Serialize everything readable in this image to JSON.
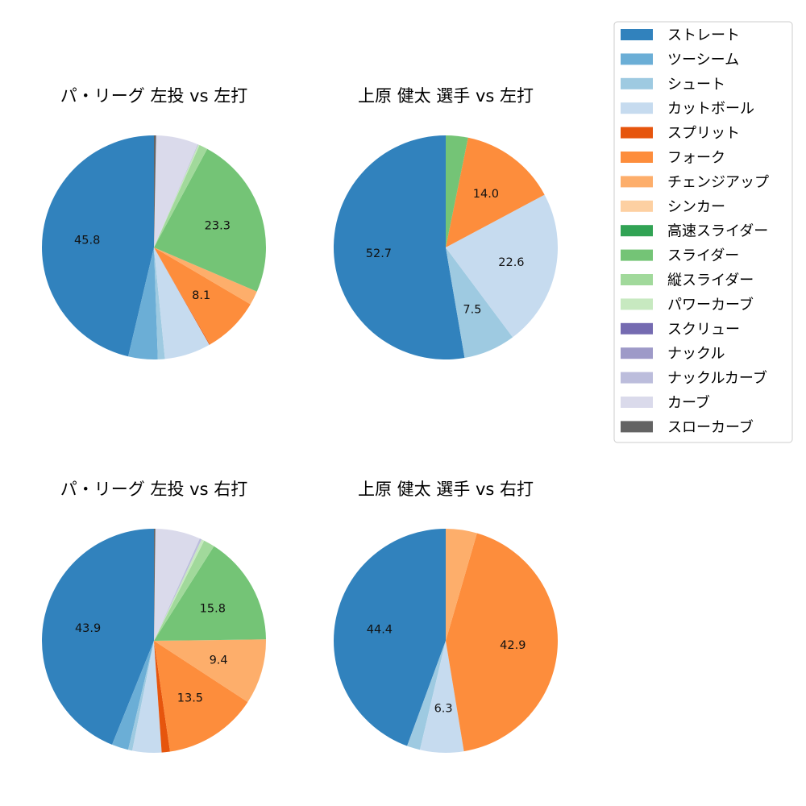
{
  "chart_data": {
    "type": "pie",
    "legend": {
      "placement": "upper-right",
      "entries": [
        {
          "name": "ストレート",
          "color": "#3182bd"
        },
        {
          "name": "ツーシーム",
          "color": "#6baed6"
        },
        {
          "name": "シュート",
          "color": "#9ecae1"
        },
        {
          "name": "カットボール",
          "color": "#c6dbef"
        },
        {
          "name": "スプリット",
          "color": "#e6550d"
        },
        {
          "name": "フォーク",
          "color": "#fd8d3c"
        },
        {
          "name": "チェンジアップ",
          "color": "#fdae6b"
        },
        {
          "name": "シンカー",
          "color": "#fdd0a2"
        },
        {
          "name": "高速スライダー",
          "color": "#31a354"
        },
        {
          "name": "スライダー",
          "color": "#74c476"
        },
        {
          "name": "縦スライダー",
          "color": "#a1d99b"
        },
        {
          "name": "パワーカーブ",
          "color": "#c7e9c0"
        },
        {
          "name": "スクリュー",
          "color": "#756bb1"
        },
        {
          "name": "ナックル",
          "color": "#9e9ac8"
        },
        {
          "name": "ナックルカーブ",
          "color": "#bcbddc"
        },
        {
          "name": "カーブ",
          "color": "#dadaeb"
        },
        {
          "name": "スローカーブ",
          "color": "#636363"
        }
      ]
    },
    "charts": [
      {
        "title": "パ・リーグ 左投 vs 左打",
        "slices": [
          {
            "name": "ストレート",
            "value": 45.8,
            "label": "45.8"
          },
          {
            "name": "ツーシーム",
            "value": 4.2,
            "label": ""
          },
          {
            "name": "シュート",
            "value": 1.0,
            "label": ""
          },
          {
            "name": "カットボール",
            "value": 6.6,
            "label": ""
          },
          {
            "name": "スプリット",
            "value": 0.1,
            "label": ""
          },
          {
            "name": "フォーク",
            "value": 8.1,
            "label": "8.1"
          },
          {
            "name": "チェンジアップ",
            "value": 2.0,
            "label": ""
          },
          {
            "name": "シンカー",
            "value": 0.0,
            "label": ""
          },
          {
            "name": "高速スライダー",
            "value": 0.0,
            "label": ""
          },
          {
            "name": "スライダー",
            "value": 23.3,
            "label": "23.3"
          },
          {
            "name": "縦スライダー",
            "value": 1.2,
            "label": ""
          },
          {
            "name": "パワーカーブ",
            "value": 0.2,
            "label": ""
          },
          {
            "name": "スクリュー",
            "value": 0.0,
            "label": ""
          },
          {
            "name": "ナックル",
            "value": 0.0,
            "label": ""
          },
          {
            "name": "ナックルカーブ",
            "value": 0.1,
            "label": ""
          },
          {
            "name": "カーブ",
            "value": 6.0,
            "label": ""
          },
          {
            "name": "スローカーブ",
            "value": 0.3,
            "label": ""
          }
        ]
      },
      {
        "title": "上原 健太 選手 vs 左打",
        "slices": [
          {
            "name": "ストレート",
            "value": 52.7,
            "label": "52.7"
          },
          {
            "name": "シュート",
            "value": 7.5,
            "label": "7.5"
          },
          {
            "name": "カットボール",
            "value": 22.6,
            "label": "22.6"
          },
          {
            "name": "フォーク",
            "value": 14.0,
            "label": "14.0"
          },
          {
            "name": "スライダー",
            "value": 3.2,
            "label": ""
          }
        ]
      },
      {
        "title": "パ・リーグ 左投 vs 右打",
        "slices": [
          {
            "name": "ストレート",
            "value": 43.9,
            "label": "43.9"
          },
          {
            "name": "ツーシーム",
            "value": 2.4,
            "label": ""
          },
          {
            "name": "シュート",
            "value": 0.6,
            "label": ""
          },
          {
            "name": "カットボール",
            "value": 4.2,
            "label": ""
          },
          {
            "name": "スプリット",
            "value": 1.2,
            "label": ""
          },
          {
            "name": "フォーク",
            "value": 13.5,
            "label": "13.5"
          },
          {
            "name": "チェンジアップ",
            "value": 9.4,
            "label": "9.4"
          },
          {
            "name": "シンカー",
            "value": 0.0,
            "label": ""
          },
          {
            "name": "高速スライダー",
            "value": 0.0,
            "label": ""
          },
          {
            "name": "スライダー",
            "value": 15.8,
            "label": "15.8"
          },
          {
            "name": "縦スライダー",
            "value": 1.6,
            "label": ""
          },
          {
            "name": "パワーカーブ",
            "value": 0.4,
            "label": ""
          },
          {
            "name": "スクリュー",
            "value": 0.0,
            "label": ""
          },
          {
            "name": "ナックル",
            "value": 0.0,
            "label": ""
          },
          {
            "name": "ナックルカーブ",
            "value": 0.3,
            "label": ""
          },
          {
            "name": "カーブ",
            "value": 6.5,
            "label": ""
          },
          {
            "name": "スローカーブ",
            "value": 0.2,
            "label": ""
          }
        ]
      },
      {
        "title": "上原 健太 選手 vs 右打",
        "slices": [
          {
            "name": "ストレート",
            "value": 44.4,
            "label": "44.4"
          },
          {
            "name": "シュート",
            "value": 1.9,
            "label": ""
          },
          {
            "name": "カットボール",
            "value": 6.3,
            "label": "6.3"
          },
          {
            "name": "フォーク",
            "value": 42.9,
            "label": "42.9"
          },
          {
            "name": "チェンジアップ",
            "value": 4.5,
            "label": ""
          }
        ]
      }
    ]
  }
}
